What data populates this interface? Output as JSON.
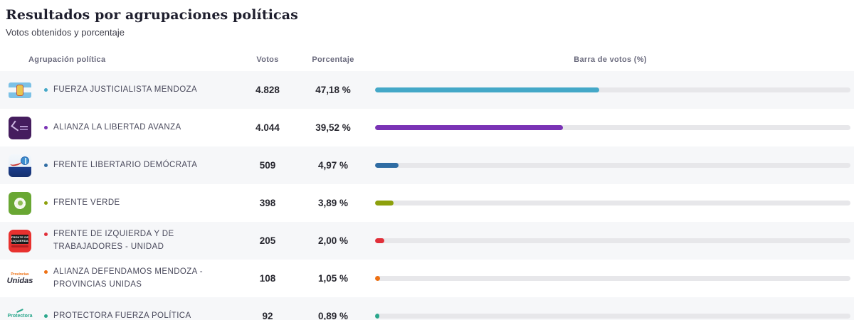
{
  "page": {
    "title": "Resultados por agrupaciones políticas",
    "subtitle": "Votos obtenidos y porcentaje"
  },
  "table": {
    "headers": {
      "party": "Agrupación política",
      "votes": "Votos",
      "percentage": "Porcentaje",
      "bar": "Barra de votos (%)"
    },
    "rows": [
      {
        "party": "FUERZA JUSTICIALISTA MENDOZA",
        "votes": "4.828",
        "percentage": "47,18 %",
        "bar_percent": 47.18,
        "color": "#44a8c8",
        "logo": "fjm",
        "logo_text": {}
      },
      {
        "party": "ALIANZA LA LIBERTAD AVANZA",
        "votes": "4.044",
        "percentage": "39,52 %",
        "bar_percent": 39.52,
        "color": "#7a33b5",
        "logo": "lla",
        "logo_text": {}
      },
      {
        "party": "FRENTE LIBERTARIO DEMÓCRATA",
        "votes": "509",
        "percentage": "4,97 %",
        "bar_percent": 4.97,
        "color": "#2f6ca3",
        "logo": "fld",
        "logo_text": {}
      },
      {
        "party": "FRENTE VERDE",
        "votes": "398",
        "percentage": "3,89 %",
        "bar_percent": 3.89,
        "color": "#8da00c",
        "logo": "fv",
        "logo_text": {}
      },
      {
        "party": "FRENTE DE IZQUIERDA Y DE TRABAJADORES - UNIDAD",
        "votes": "205",
        "percentage": "2,00 %",
        "bar_percent": 2.0,
        "color": "#e12f39",
        "logo": "fit",
        "logo_text": {
          "line1": "FRENTE DE",
          "line2": "IZQUIERDA"
        }
      },
      {
        "party": "ALIANZA DEFENDAMOS MENDOZA - PROVINCIAS UNIDAS",
        "votes": "108",
        "percentage": "1,05 %",
        "bar_percent": 1.05,
        "color": "#ee7012",
        "logo": "unidas",
        "logo_text": {
          "top": "Provincias",
          "main": "Unidas"
        }
      },
      {
        "party": "PROTECTORA FUERZA POLÍTICA",
        "votes": "92",
        "percentage": "0,89 %",
        "bar_percent": 0.89,
        "color": "#2aa78c",
        "logo": "prot",
        "logo_text": {
          "main": "Protectora"
        }
      }
    ]
  },
  "chart_data": {
    "type": "bar",
    "orientation": "horizontal",
    "title": "Resultados por agrupaciones políticas",
    "subtitle": "Votos obtenidos y porcentaje",
    "categories": [
      "FUERZA JUSTICIALISTA MENDOZA",
      "ALIANZA LA LIBERTAD AVANZA",
      "FRENTE LIBERTARIO DEMÓCRATA",
      "FRENTE VERDE",
      "FRENTE DE IZQUIERDA Y DE TRABAJADORES - UNIDAD",
      "ALIANZA DEFENDAMOS MENDOZA - PROVINCIAS UNIDAS",
      "PROTECTORA FUERZA POLÍTICA"
    ],
    "series": [
      {
        "name": "Votos",
        "values": [
          4828,
          4044,
          509,
          398,
          205,
          108,
          92
        ]
      },
      {
        "name": "Porcentaje",
        "values": [
          47.18,
          39.52,
          4.97,
          3.89,
          2.0,
          1.05,
          0.89
        ]
      }
    ],
    "bar_colors": [
      "#44a8c8",
      "#7a33b5",
      "#2f6ca3",
      "#8da00c",
      "#e12f39",
      "#ee7012",
      "#2aa78c"
    ],
    "xlim": [
      0,
      100
    ],
    "grid": false,
    "legend": false,
    "track_color": "#e7e7ea"
  }
}
